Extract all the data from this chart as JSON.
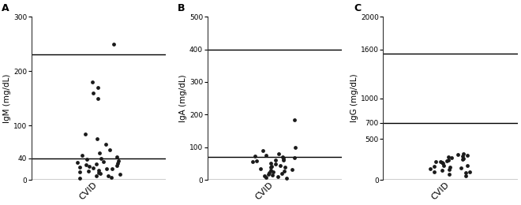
{
  "panel_A": {
    "label": "A",
    "ylabel": "IgM (mg/dL)",
    "xlabel": "CVID",
    "ylim": [
      0,
      300
    ],
    "yticks": [
      0,
      40,
      100,
      200,
      300
    ],
    "ytick_labels": [
      "0",
      "40",
      "100",
      "200",
      "300"
    ],
    "hlines": [
      0,
      40,
      230
    ],
    "data": [
      3,
      5,
      7,
      8,
      10,
      12,
      14,
      15,
      16,
      18,
      20,
      20,
      22,
      24,
      25,
      26,
      28,
      29,
      30,
      32,
      34,
      35,
      38,
      40,
      42,
      45,
      50,
      55,
      65,
      75,
      85,
      150,
      160,
      170,
      180,
      250
    ]
  },
  "panel_B": {
    "label": "B",
    "ylabel": "IgA (mg/dL)",
    "xlabel": "CVID",
    "ylim": [
      0,
      500
    ],
    "yticks": [
      0,
      100,
      200,
      300,
      400,
      500
    ],
    "ytick_labels": [
      "0",
      "100",
      "200",
      "300",
      "400",
      "500"
    ],
    "hlines": [
      0,
      70,
      400
    ],
    "data": [
      5,
      8,
      10,
      12,
      15,
      18,
      20,
      22,
      25,
      28,
      30,
      32,
      35,
      38,
      40,
      42,
      45,
      48,
      50,
      55,
      58,
      60,
      62,
      65,
      68,
      70,
      72,
      75,
      80,
      90,
      100,
      185
    ]
  },
  "panel_C": {
    "label": "C",
    "ylabel": "IgG (mg/dL)",
    "xlabel": "CVID",
    "ylim": [
      0,
      2000
    ],
    "yticks": [
      0,
      500,
      700,
      1000,
      1600,
      2000
    ],
    "ytick_labels": [
      "0",
      "500",
      "700",
      "1000",
      "1600",
      "2000"
    ],
    "hlines": [
      0,
      700,
      1550
    ],
    "data": [
      50,
      70,
      90,
      100,
      120,
      130,
      150,
      160,
      170,
      180,
      200,
      210,
      220,
      230,
      240,
      250,
      260,
      270,
      280,
      290,
      300,
      310,
      320,
      100,
      140,
      180,
      220
    ]
  },
  "dot_color": "#1a1a1a",
  "dot_size": 12,
  "line_color": "#000000",
  "line_lw": 1.0,
  "bg_color": "#ffffff",
  "ylabel_fontsize": 7.5,
  "tick_fontsize": 6.5,
  "xlabel_fontsize": 8,
  "panel_label_fontsize": 9
}
